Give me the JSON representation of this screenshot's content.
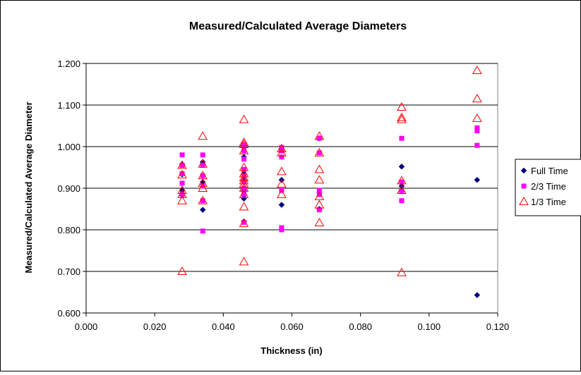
{
  "chart_data": {
    "type": "scatter",
    "title": "Measured/Calculated Average Diameters",
    "xlabel": "Thickness (in)",
    "ylabel": "Measured/Calculated Average Diameter",
    "xlim": [
      0.0,
      0.12
    ],
    "ylim": [
      0.6,
      1.2
    ],
    "x_ticks": [
      "0.000",
      "0.020",
      "0.040",
      "0.060",
      "0.080",
      "0.100",
      "0.120"
    ],
    "y_ticks": [
      "0.600",
      "0.700",
      "0.800",
      "0.900",
      "1.000",
      "1.100",
      "1.200"
    ],
    "grid": "horizontal",
    "legend_position": "right",
    "series": [
      {
        "name": "Full Time",
        "marker": "diamond",
        "color": "#000080",
        "points": [
          [
            0.028,
            0.958
          ],
          [
            0.028,
            0.933
          ],
          [
            0.028,
            0.895
          ],
          [
            0.028,
            0.883
          ],
          [
            0.034,
            0.963
          ],
          [
            0.034,
            0.915
          ],
          [
            0.034,
            0.848
          ],
          [
            0.046,
            1.0
          ],
          [
            0.046,
            0.975
          ],
          [
            0.046,
            0.935
          ],
          [
            0.046,
            0.92
          ],
          [
            0.046,
            0.895
          ],
          [
            0.046,
            0.875
          ],
          [
            0.046,
            0.82
          ],
          [
            0.057,
            0.99
          ],
          [
            0.057,
            0.92
          ],
          [
            0.057,
            0.86
          ],
          [
            0.068,
            1.02
          ],
          [
            0.068,
            0.89
          ],
          [
            0.068,
            0.85
          ],
          [
            0.092,
            0.952
          ],
          [
            0.092,
            0.905
          ],
          [
            0.092,
            0.893
          ],
          [
            0.114,
            0.92
          ],
          [
            0.114,
            0.643
          ]
        ]
      },
      {
        "name": "2/3 Time",
        "marker": "square",
        "color": "#FF00FF",
        "points": [
          [
            0.028,
            0.98
          ],
          [
            0.028,
            0.955
          ],
          [
            0.028,
            0.935
          ],
          [
            0.028,
            0.912
          ],
          [
            0.028,
            0.885
          ],
          [
            0.034,
            0.98
          ],
          [
            0.034,
            0.955
          ],
          [
            0.034,
            0.93
          ],
          [
            0.034,
            0.905
          ],
          [
            0.034,
            0.87
          ],
          [
            0.034,
            0.797
          ],
          [
            0.046,
            1.005
          ],
          [
            0.046,
            0.99
          ],
          [
            0.046,
            0.97
          ],
          [
            0.046,
            0.945
          ],
          [
            0.046,
            0.93
          ],
          [
            0.046,
            0.915
          ],
          [
            0.046,
            0.9
          ],
          [
            0.046,
            0.885
          ],
          [
            0.046,
            0.818
          ],
          [
            0.057,
            0.998
          ],
          [
            0.057,
            0.99
          ],
          [
            0.057,
            0.975
          ],
          [
            0.057,
            0.895
          ],
          [
            0.057,
            0.805
          ],
          [
            0.057,
            0.8
          ],
          [
            0.068,
            1.02
          ],
          [
            0.068,
            0.985
          ],
          [
            0.068,
            0.895
          ],
          [
            0.068,
            0.885
          ],
          [
            0.068,
            0.848
          ],
          [
            0.092,
            1.02
          ],
          [
            0.092,
            0.915
          ],
          [
            0.092,
            0.892
          ],
          [
            0.092,
            0.87
          ],
          [
            0.114,
            1.045
          ],
          [
            0.114,
            1.038
          ],
          [
            0.114,
            1.003
          ]
        ]
      },
      {
        "name": "1/3 Time",
        "marker": "triangle",
        "color": "#FF0000",
        "points": [
          [
            0.028,
            0.955
          ],
          [
            0.028,
            0.932
          ],
          [
            0.028,
            0.895
          ],
          [
            0.028,
            0.885
          ],
          [
            0.028,
            0.87
          ],
          [
            0.028,
            0.7
          ],
          [
            0.034,
            1.025
          ],
          [
            0.034,
            0.958
          ],
          [
            0.034,
            0.93
          ],
          [
            0.034,
            0.912
          ],
          [
            0.034,
            0.9
          ],
          [
            0.034,
            0.87
          ],
          [
            0.046,
            1.065
          ],
          [
            0.046,
            1.01
          ],
          [
            0.046,
            1.005
          ],
          [
            0.046,
            0.99
          ],
          [
            0.046,
            0.95
          ],
          [
            0.046,
            0.935
          ],
          [
            0.046,
            0.925
          ],
          [
            0.046,
            0.918
          ],
          [
            0.046,
            0.91
          ],
          [
            0.046,
            0.9
          ],
          [
            0.046,
            0.885
          ],
          [
            0.046,
            0.855
          ],
          [
            0.046,
            0.815
          ],
          [
            0.046,
            0.723
          ],
          [
            0.057,
            0.995
          ],
          [
            0.057,
            0.985
          ],
          [
            0.057,
            0.94
          ],
          [
            0.057,
            0.91
          ],
          [
            0.057,
            0.885
          ],
          [
            0.068,
            1.025
          ],
          [
            0.068,
            0.985
          ],
          [
            0.068,
            0.945
          ],
          [
            0.068,
            0.92
          ],
          [
            0.068,
            0.88
          ],
          [
            0.068,
            0.86
          ],
          [
            0.068,
            0.817
          ],
          [
            0.092,
            1.095
          ],
          [
            0.092,
            1.07
          ],
          [
            0.092,
            1.065
          ],
          [
            0.092,
            0.918
          ],
          [
            0.092,
            0.895
          ],
          [
            0.092,
            0.697
          ],
          [
            0.114,
            1.183
          ],
          [
            0.114,
            1.115
          ],
          [
            0.114,
            1.068
          ]
        ]
      }
    ]
  }
}
